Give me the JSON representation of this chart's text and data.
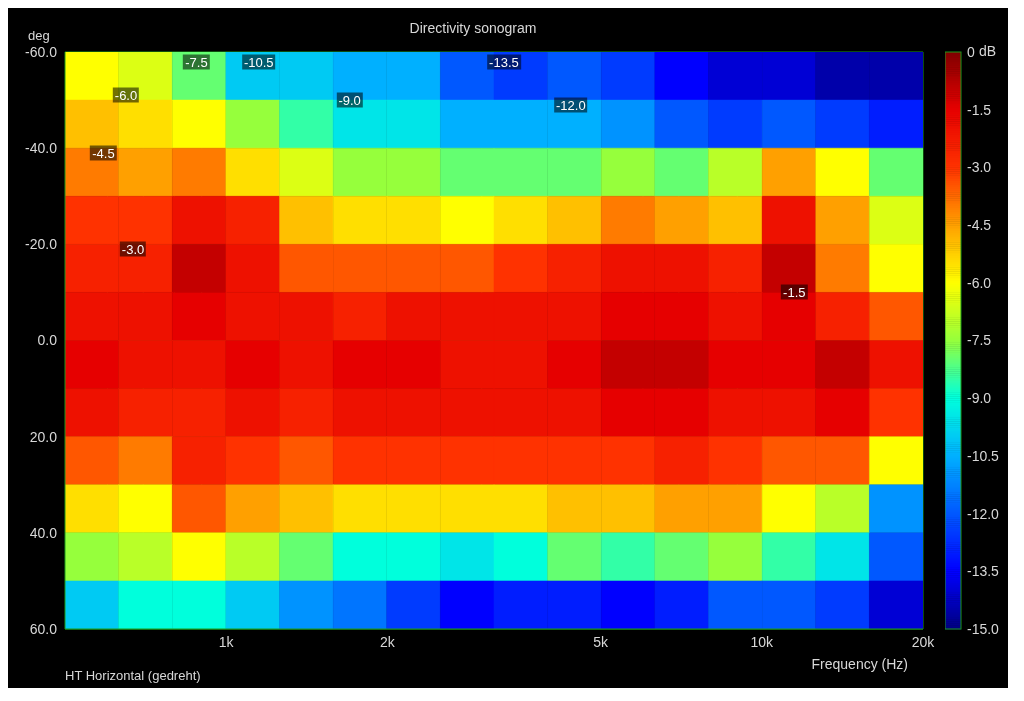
{
  "chart_data": {
    "type": "heatmap",
    "title": "Directivity sonogram",
    "xlabel": "Frequency (Hz)",
    "ylabel": "deg",
    "clabel": "dB",
    "log": "x",
    "grid": true,
    "xlim": [
      500,
      20000
    ],
    "xticks": [
      {
        "value": 600,
        "label": null
      },
      {
        "value": 700,
        "label": null
      },
      {
        "value": 800,
        "label": null
      },
      {
        "value": 900,
        "label": null
      },
      {
        "value": 1000,
        "label": "1k"
      },
      {
        "value": 2000,
        "label": "2k"
      },
      {
        "value": 3000,
        "label": null
      },
      {
        "value": 4000,
        "label": null
      },
      {
        "value": 5000,
        "label": "5k"
      },
      {
        "value": 6000,
        "label": null
      },
      {
        "value": 7000,
        "label": null
      },
      {
        "value": 8000,
        "label": null
      },
      {
        "value": 9000,
        "label": null
      },
      {
        "value": 10000,
        "label": "10k"
      },
      {
        "value": 20000,
        "label": "20k"
      }
    ],
    "ylim": [
      60,
      -60
    ],
    "yticks": [
      {
        "value": -60,
        "label": "-60.0"
      },
      {
        "value": -40,
        "label": "-40.0"
      },
      {
        "value": -20,
        "label": "-20.0"
      },
      {
        "value": 0,
        "label": "0.0"
      },
      {
        "value": 20,
        "label": "20.0"
      },
      {
        "value": 40,
        "label": "40.0"
      },
      {
        "value": 60,
        "label": "60.0"
      }
    ],
    "clim": [
      -15,
      0
    ],
    "cticks": [
      {
        "value": 0,
        "label": "0"
      },
      -1.5,
      {
        "value": -3,
        "label": "-3.0"
      },
      -4.5,
      {
        "value": -6,
        "label": "-6.0"
      },
      -7.5,
      {
        "value": -9,
        "label": "-9.0"
      },
      -10.5,
      {
        "value": -12,
        "label": "-12.0"
      },
      -13.5,
      {
        "value": -15,
        "label": "-15.0"
      }
    ],
    "cells": [
      [
        -6,
        -6.5,
        -8,
        -10,
        -10,
        -10.5,
        -10.5,
        -12,
        -12.5,
        -12,
        -12.5,
        -13.5,
        -14,
        -14,
        -14.5,
        -14.5
      ],
      [
        -5,
        -5.5,
        -6,
        -7.5,
        -8.5,
        -9.5,
        -9.5,
        -10.5,
        -10.5,
        -10.5,
        -11,
        -12,
        -12.5,
        -12,
        -12.5,
        -13
      ],
      [
        -4,
        -4.5,
        -4,
        -5.5,
        -6.5,
        -7.5,
        -7.5,
        -8,
        -8,
        -8,
        -7.5,
        -8,
        -7,
        -4.5,
        -6,
        -8
      ],
      [
        -3,
        -3,
        -2,
        -2.5,
        -5,
        -5.5,
        -5.5,
        -6,
        -5.5,
        -5,
        -4,
        -4.5,
        -5,
        -2,
        -4.5,
        -6.5
      ],
      [
        -2.5,
        -2.5,
        -1,
        -2,
        -3.5,
        -3.5,
        -3.5,
        -3.5,
        -3,
        -2.5,
        -2,
        -2,
        -2.5,
        -1,
        -4,
        -6
      ],
      [
        -2,
        -2,
        -1.5,
        -2,
        -2,
        -2.5,
        -2,
        -2,
        -2,
        -2,
        -1.5,
        -1.5,
        -2,
        -1.5,
        -2.5,
        -3.5
      ],
      [
        -1.5,
        -2,
        -2,
        -1.5,
        -2,
        -1.5,
        -1.5,
        -2,
        -2,
        -1.5,
        -1,
        -1,
        -1.5,
        -1.5,
        -1,
        -2
      ],
      [
        -2,
        -2.5,
        -2.5,
        -2,
        -2.5,
        -2,
        -2,
        -2,
        -2,
        -2,
        -1.5,
        -1.5,
        -2,
        -2,
        -1.5,
        -3
      ],
      [
        -3.5,
        -4,
        -2.5,
        -3,
        -3.5,
        -3,
        -3,
        -3,
        -3,
        -3,
        -3,
        -2.5,
        -3,
        -3.5,
        -3.5,
        -6
      ],
      [
        -5.5,
        -6,
        -3.5,
        -4.5,
        -5,
        -5.5,
        -5.5,
        -5.5,
        -5.5,
        -5,
        -5,
        -4.5,
        -4.5,
        -6,
        -7,
        -11
      ],
      [
        -7.5,
        -7,
        -6,
        -7,
        -8,
        -9,
        -9,
        -9.5,
        -9,
        -8,
        -8.5,
        -8,
        -7.5,
        -8.5,
        -9.5,
        -12
      ],
      [
        -10,
        -9,
        -9,
        -10,
        -11,
        -11.5,
        -12.5,
        -13.5,
        -13,
        -13,
        -13.5,
        -13,
        -12,
        -12,
        -12.5,
        -14
      ]
    ],
    "annotations": [
      "-7.5",
      "-10.5",
      "-13.5",
      "-6.0",
      "-9.0",
      "-12.0",
      "-4.5",
      "-3.0",
      "-1.5",
      "HT Horizontal (gedreht)"
    ]
  }
}
